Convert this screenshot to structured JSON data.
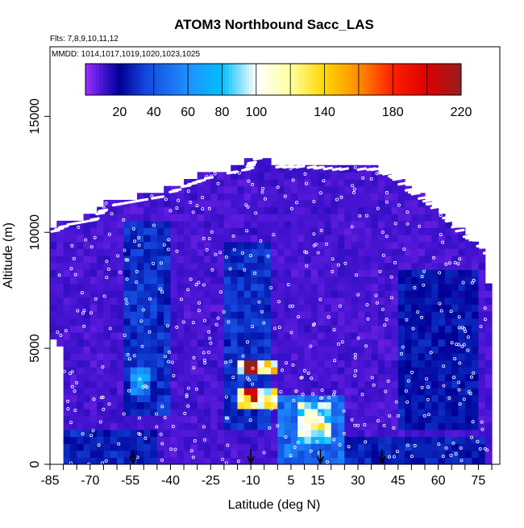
{
  "chart_data": {
    "type": "heatmap",
    "title": "ATOM3 Northbound Sacc_LAS",
    "flights_note": "Flts: 7,8,9,10,11,12",
    "dates_note": "MMDD: 1014,1017,1019,1020,1023,1025",
    "xlabel": "Latitude (deg N)",
    "ylabel": "Altitude (m)",
    "xlim": [
      -85,
      83
    ],
    "ylim": [
      0,
      18000
    ],
    "x_ticks": [
      -85,
      -70,
      -55,
      -40,
      -25,
      -10,
      5,
      15,
      30,
      45,
      60,
      75
    ],
    "x_minor_ticks": [
      -80,
      -75,
      -65,
      -60,
      -50,
      -45,
      -35,
      -30,
      -20,
      -15,
      -5,
      0,
      10,
      20,
      25,
      35,
      40,
      50,
      55,
      65,
      70,
      80
    ],
    "y_ticks": [
      0,
      5000,
      10000,
      15000
    ],
    "colorbar": {
      "vmin": 0,
      "vmax": 220,
      "tick_values": [
        20,
        40,
        60,
        80,
        100,
        140,
        180,
        220
      ],
      "separators": [
        20,
        40,
        60,
        80,
        100,
        120,
        140,
        160,
        180,
        200
      ],
      "colors": [
        "#9b30ff",
        "#00008b",
        "#1e90ff",
        "#00bfff",
        "#ffffff",
        "#ffff99",
        "#ffd700",
        "#ff8c00",
        "#ff0000",
        "#a52a2a"
      ]
    },
    "profile_markers_lat": [
      -54,
      -10,
      16,
      39
    ],
    "envelope": [
      [
        -85,
        10200
      ],
      [
        -80,
        10500
      ],
      [
        -70,
        10700
      ],
      [
        -65,
        11300
      ],
      [
        -55,
        11500
      ],
      [
        -45,
        11700
      ],
      [
        -35,
        12200
      ],
      [
        -25,
        12600
      ],
      [
        -12,
        12900
      ],
      [
        -10,
        13400
      ],
      [
        0,
        13000
      ],
      [
        10,
        13000
      ],
      [
        20,
        12900
      ],
      [
        35,
        12900
      ],
      [
        42,
        12600
      ],
      [
        48,
        12000
      ],
      [
        55,
        11500
      ],
      [
        62,
        10800
      ],
      [
        68,
        10100
      ],
      [
        73,
        9800
      ],
      [
        78,
        9200
      ],
      [
        80,
        5500
      ],
      [
        80,
        0
      ],
      [
        -79,
        0
      ],
      [
        -80,
        4800
      ],
      [
        -85,
        5500
      ]
    ],
    "features": [
      {
        "name": "background",
        "lat": [
          -85,
          80
        ],
        "alt": [
          0,
          13500
        ],
        "value": 8
      },
      {
        "name": "southern-lowalt-band",
        "lat": [
          -80,
          -45
        ],
        "alt": [
          0,
          1500
        ],
        "value": 25
      },
      {
        "name": "southern-dark-column",
        "lat": [
          -58,
          -40
        ],
        "alt": [
          2000,
          10500
        ],
        "value": 28
      },
      {
        "name": "southern-column-core",
        "lat": [
          -56,
          -48
        ],
        "alt": [
          3000,
          4200
        ],
        "value": 55
      },
      {
        "name": "tropical-column",
        "lat": [
          -20,
          -2
        ],
        "alt": [
          1500,
          9500
        ],
        "value": 28
      },
      {
        "name": "tropical-plume-upper",
        "lat": [
          -15,
          0
        ],
        "alt": [
          3800,
          4600
        ],
        "value": 120
      },
      {
        "name": "tropical-plume-lower",
        "lat": [
          -15,
          0
        ],
        "alt": [
          2500,
          3300
        ],
        "value": 110
      },
      {
        "name": "tropical-peak-upper",
        "lat": [
          -12,
          -8
        ],
        "alt": [
          4000,
          4500
        ],
        "value": 190
      },
      {
        "name": "tropical-peak-lower",
        "lat": [
          -12,
          -8
        ],
        "alt": [
          2800,
          3200
        ],
        "value": 175
      },
      {
        "name": "equatorial-lowalt",
        "lat": [
          0,
          25
        ],
        "alt": [
          0,
          3000
        ],
        "value": 45
      },
      {
        "name": "equatorial-plume",
        "lat": [
          8,
          20
        ],
        "alt": [
          800,
          2600
        ],
        "value": 90
      },
      {
        "name": "equatorial-peak",
        "lat": [
          12,
          17
        ],
        "alt": [
          1400,
          1800
        ],
        "value": 150
      },
      {
        "name": "northern-dark-patch",
        "lat": [
          45,
          75
        ],
        "alt": [
          1500,
          8500
        ],
        "value": 22
      },
      {
        "name": "northern-lowalt-band",
        "lat": [
          25,
          78
        ],
        "alt": [
          0,
          1200
        ],
        "value": 24
      }
    ]
  }
}
